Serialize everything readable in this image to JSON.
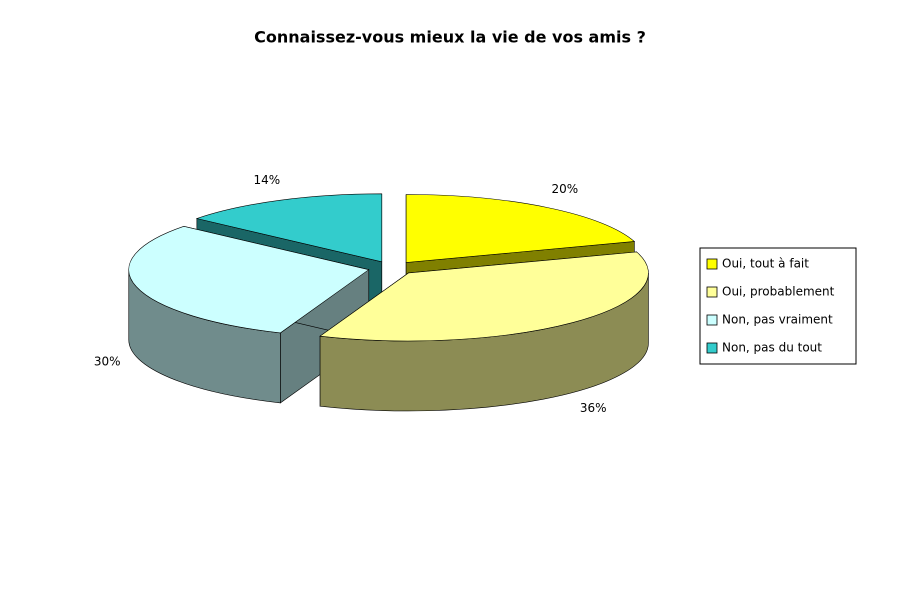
{
  "chart_data": {
    "type": "pie3d",
    "title": "Connaissez-vous mieux la vie de vos amis ?",
    "categories": [
      "Oui, tout à fait",
      "Oui, probablement",
      "Non, pas vraiment",
      "Non, pas du tout"
    ],
    "values": [
      20,
      36,
      30,
      14
    ],
    "value_labels": [
      "20%",
      "36%",
      "30%",
      "14%"
    ],
    "colors": [
      "#ffff00",
      "#ffff99",
      "#ccffff",
      "#33cccc"
    ],
    "legend": "right"
  }
}
